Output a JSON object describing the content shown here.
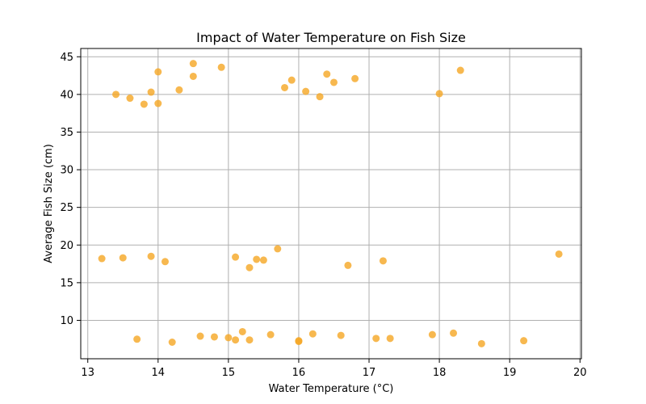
{
  "chart_data": {
    "type": "scatter",
    "title": "Impact of Water Temperature on Fish Size",
    "xlabel": "Water Temperature (°C)",
    "ylabel": "Average Fish Size (cm)",
    "xlim": [
      12.9,
      20.02
    ],
    "ylim": [
      4.9,
      46.1
    ],
    "xticks": [
      13,
      14,
      15,
      16,
      17,
      18,
      19,
      20
    ],
    "yticks": [
      10,
      15,
      20,
      25,
      30,
      35,
      40,
      45
    ],
    "grid": true,
    "legend": "none",
    "marker_color": "#f5a623",
    "points": [
      {
        "x": 13.4,
        "y": 40.0
      },
      {
        "x": 13.6,
        "y": 39.5
      },
      {
        "x": 13.8,
        "y": 38.7
      },
      {
        "x": 13.9,
        "y": 40.3
      },
      {
        "x": 14.0,
        "y": 43.0
      },
      {
        "x": 14.0,
        "y": 38.8
      },
      {
        "x": 14.3,
        "y": 40.6
      },
      {
        "x": 14.5,
        "y": 44.1
      },
      {
        "x": 14.5,
        "y": 42.4
      },
      {
        "x": 14.9,
        "y": 43.6
      },
      {
        "x": 15.8,
        "y": 40.9
      },
      {
        "x": 15.9,
        "y": 41.9
      },
      {
        "x": 16.1,
        "y": 40.4
      },
      {
        "x": 16.3,
        "y": 39.7
      },
      {
        "x": 16.4,
        "y": 42.7
      },
      {
        "x": 16.5,
        "y": 41.6
      },
      {
        "x": 16.8,
        "y": 42.1
      },
      {
        "x": 18.0,
        "y": 40.1
      },
      {
        "x": 18.3,
        "y": 43.2
      },
      {
        "x": 13.2,
        "y": 18.2
      },
      {
        "x": 13.5,
        "y": 18.3
      },
      {
        "x": 13.9,
        "y": 18.5
      },
      {
        "x": 14.1,
        "y": 17.8
      },
      {
        "x": 15.1,
        "y": 18.4
      },
      {
        "x": 15.3,
        "y": 17.0
      },
      {
        "x": 15.4,
        "y": 18.1
      },
      {
        "x": 15.5,
        "y": 18.0
      },
      {
        "x": 15.7,
        "y": 19.5
      },
      {
        "x": 16.7,
        "y": 17.3
      },
      {
        "x": 17.2,
        "y": 17.9
      },
      {
        "x": 19.7,
        "y": 18.8
      },
      {
        "x": 13.7,
        "y": 7.5
      },
      {
        "x": 14.2,
        "y": 7.1
      },
      {
        "x": 14.6,
        "y": 7.9
      },
      {
        "x": 14.8,
        "y": 7.8
      },
      {
        "x": 15.0,
        "y": 7.7
      },
      {
        "x": 15.1,
        "y": 7.4
      },
      {
        "x": 15.2,
        "y": 8.5
      },
      {
        "x": 15.3,
        "y": 7.4
      },
      {
        "x": 15.6,
        "y": 8.1
      },
      {
        "x": 16.0,
        "y": 7.2
      },
      {
        "x": 16.0,
        "y": 7.3
      },
      {
        "x": 16.2,
        "y": 8.2
      },
      {
        "x": 16.6,
        "y": 8.0
      },
      {
        "x": 17.1,
        "y": 7.6
      },
      {
        "x": 17.3,
        "y": 7.6
      },
      {
        "x": 17.9,
        "y": 8.1
      },
      {
        "x": 18.2,
        "y": 8.3
      },
      {
        "x": 18.6,
        "y": 6.9
      },
      {
        "x": 19.2,
        "y": 7.3
      }
    ]
  }
}
